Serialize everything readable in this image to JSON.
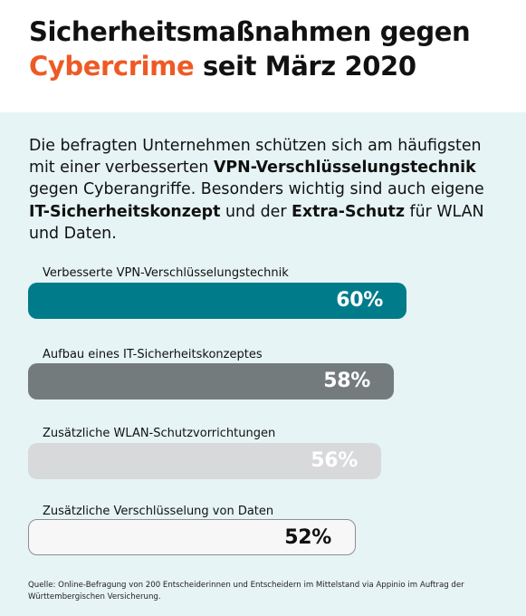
{
  "title": {
    "line1": "Sicherheitsmaßnahmen gegen",
    "accent": "Cybercrime",
    "line2_rest": " seit März 2020"
  },
  "intro": {
    "p1": "Die befragten Unternehmen schützen sich am häufigsten mit einer verbesserten ",
    "b1": "VPN-Verschlüsselungstechnik",
    "p2": " gegen Cyberangriffe. Besonders wichtig sind auch eigene ",
    "b2": "IT-Sicherheitskonzept",
    "p3": " und der ",
    "b3": "Extra-Schutz",
    "p4": " für WLAN und Daten."
  },
  "colors": {
    "accent": "#ee5a24",
    "panel": "#e6f4f5",
    "bar_teal": "#007b8a",
    "bar_dark_gray": "#747b7d",
    "bar_light_gray": "#d7d9da",
    "bar_white": "#f7f7f7"
  },
  "chart_data": {
    "type": "bar",
    "orientation": "horizontal",
    "categories": [
      "Verbesserte VPN-Verschlüsselungstechnik",
      "Aufbau eines IT-Sicherheitskonzeptes",
      "Zusätzliche WLAN-Schutzvorrichtungen",
      "Zusätzliche Verschlüsselung von Daten"
    ],
    "values": [
      60,
      58,
      56,
      52
    ],
    "value_labels": [
      "60%",
      "58%",
      "56%",
      "52%"
    ],
    "bar_colors": [
      "#007b8a",
      "#747b7d",
      "#d7d9da",
      "#f7f7f7"
    ],
    "label_colors": [
      "#ffffff",
      "#ffffff",
      "#ffffff",
      "#111111"
    ],
    "unit": "%",
    "grid": false,
    "legend": false
  },
  "source": "Quelle: Online-Befragung von 200 Entscheiderinnen und Entscheidern im Mittelstand via Appinio im Auftrag der Württembergischen Versicherung."
}
